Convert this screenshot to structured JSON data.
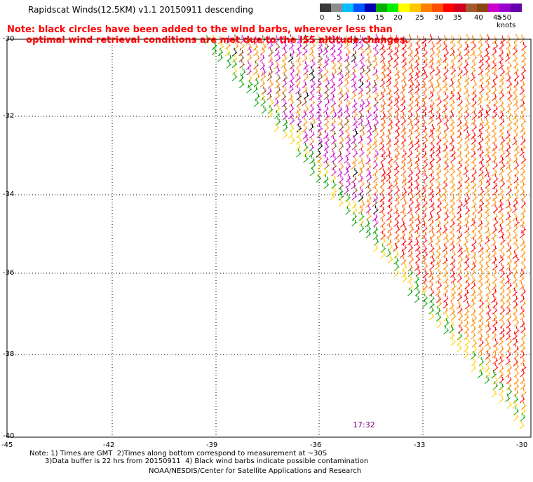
{
  "title": "Rapidscat Winds(12.5KM) v1.1 20150911 descending",
  "note": {
    "line1": "Note: black circles have been added to the wind barbs, wherever less than",
    "line2": "      optimal wind retrieval conditions are met due to the ISS altitude changes."
  },
  "legend": {
    "labels": [
      "0",
      "5",
      "10",
      "15",
      "20",
      "25",
      "30",
      "35",
      "40",
      "45",
      ">50 knots"
    ],
    "colors": [
      "#3a3a3a",
      "#8c8c8c",
      "#00bfff",
      "#0055ff",
      "#0000b0",
      "#00b000",
      "#00ee00",
      "#ffff00",
      "#ffc800",
      "#ff8000",
      "#ff5000",
      "#ff0000",
      "#d00020",
      "#a05a2c",
      "#8b4513",
      "#cc00cc",
      "#9900cc",
      "#6600aa"
    ]
  },
  "axes": {
    "latitude_labels": [
      "-30",
      "-32",
      "-34",
      "-36",
      "-38",
      "-40"
    ],
    "longitude_labels": [
      "-45",
      "-42",
      "-39",
      "-36",
      "-33",
      "-30"
    ]
  },
  "timestamp": "17:32",
  "footnotes": {
    "line1": "Note: 1) Times are GMT  2)Times along bottom correspond to measurement at ~30S",
    "line2": "3)Data buffer is 22 hrs from 20150911  4) Black wind barbs indicate possible contamination",
    "line3": "NOAA/NESDIS/Center for Satellite Applications and Research"
  }
}
